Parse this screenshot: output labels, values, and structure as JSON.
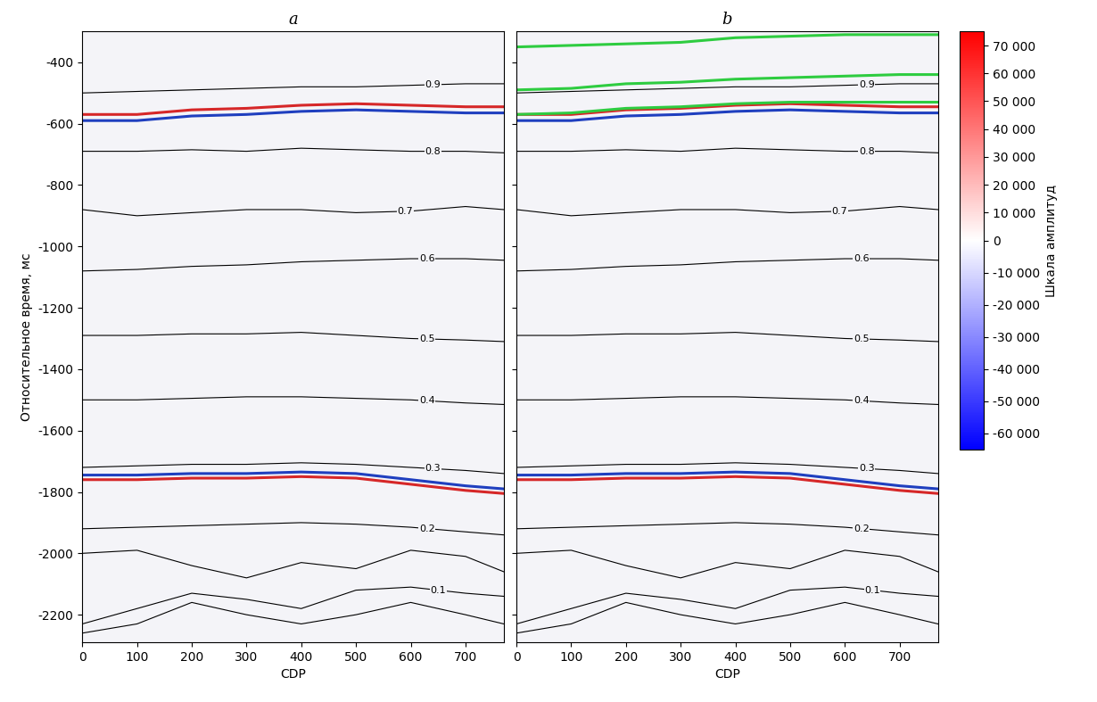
{
  "chart_data": [
    {
      "type": "line",
      "title": "a",
      "xlabel": "CDP",
      "ylabel": "Относительное время, мс",
      "x": [
        0,
        100,
        200,
        300,
        400,
        500,
        600,
        700,
        770
      ],
      "xlim": [
        0,
        770
      ],
      "xticks": [
        0,
        100,
        200,
        300,
        400,
        500,
        600,
        700
      ],
      "ylim": [
        -2290,
        -300
      ],
      "yticks": [
        -2200,
        -2000,
        -1800,
        -1600,
        -1400,
        -1200,
        -1000,
        -800,
        -600,
        -400
      ],
      "tick_labels": true,
      "series": [
        {
          "color": "#d62728",
          "line_style": "solid",
          "values": [
            -570,
            -570,
            -555,
            -550,
            -540,
            -535,
            -540,
            -545,
            -545
          ]
        },
        {
          "color": "#1f3fbf",
          "line_style": "solid",
          "values": [
            -590,
            -590,
            -575,
            -570,
            -560,
            -555,
            -560,
            -565,
            -565
          ]
        },
        {
          "color": "#1f3fbf",
          "line_style": "solid",
          "values": [
            -1745,
            -1745,
            -1740,
            -1740,
            -1735,
            -1740,
            -1760,
            -1780,
            -1790
          ]
        },
        {
          "color": "#d62728",
          "line_style": "solid",
          "values": [
            -1760,
            -1760,
            -1755,
            -1755,
            -1750,
            -1755,
            -1775,
            -1795,
            -1805
          ]
        },
        {
          "name": "0.9",
          "label_at": 640,
          "color": "#000000",
          "line_style": "solid",
          "values": [
            -500,
            -495,
            -490,
            -485,
            -480,
            -480,
            -475,
            -470,
            -470
          ]
        },
        {
          "name": "0.8",
          "label_at": 640,
          "color": "#000000",
          "line_style": "solid",
          "values": [
            -690,
            -690,
            -685,
            -690,
            -680,
            -685,
            -690,
            -690,
            -695
          ]
        },
        {
          "name": "0.7",
          "label_at": 590,
          "color": "#000000",
          "line_style": "solid",
          "values": [
            -880,
            -900,
            -890,
            -880,
            -880,
            -890,
            -885,
            -870,
            -880
          ]
        },
        {
          "name": "0.6",
          "label_at": 630,
          "color": "#000000",
          "line_style": "solid",
          "values": [
            -1080,
            -1075,
            -1065,
            -1060,
            -1050,
            -1045,
            -1040,
            -1040,
            -1045
          ]
        },
        {
          "name": "0.5",
          "label_at": 630,
          "color": "#000000",
          "line_style": "solid",
          "values": [
            -1290,
            -1290,
            -1285,
            -1285,
            -1280,
            -1290,
            -1300,
            -1305,
            -1310
          ]
        },
        {
          "name": "0.4",
          "label_at": 630,
          "color": "#000000",
          "line_style": "solid",
          "values": [
            -1500,
            -1500,
            -1495,
            -1490,
            -1490,
            -1495,
            -1500,
            -1510,
            -1515
          ]
        },
        {
          "name": "0.3",
          "label_at": 640,
          "color": "#000000",
          "line_style": "solid",
          "values": [
            -1720,
            -1715,
            -1710,
            -1710,
            -1705,
            -1710,
            -1720,
            -1730,
            -1740
          ]
        },
        {
          "name": "0.2",
          "label_at": 630,
          "color": "#000000",
          "line_style": "solid",
          "values": [
            -1920,
            -1915,
            -1910,
            -1905,
            -1900,
            -1905,
            -1915,
            -1930,
            -1940
          ]
        },
        {
          "name": "0.1",
          "label_at": 650,
          "color": "#000000",
          "line_style": "solid",
          "values": [
            -2230,
            -2180,
            -2130,
            -2150,
            -2180,
            -2120,
            -2110,
            -2130,
            -2140
          ]
        },
        {
          "color": "#000000",
          "line_style": "solid",
          "values": [
            -2000,
            -1990,
            -2040,
            -2080,
            -2030,
            -2050,
            -1990,
            -2010,
            -2060
          ]
        },
        {
          "color": "#000000",
          "line_style": "solid",
          "values": [
            -2260,
            -2230,
            -2160,
            -2200,
            -2230,
            -2200,
            -2160,
            -2200,
            -2230
          ]
        }
      ]
    },
    {
      "type": "line",
      "title": "b",
      "xlabel": "CDP",
      "x": [
        0,
        100,
        200,
        300,
        400,
        500,
        600,
        700,
        770
      ],
      "xlim": [
        0,
        770
      ],
      "xticks": [
        0,
        100,
        200,
        300,
        400,
        500,
        600,
        700
      ],
      "ylim": [
        -2290,
        -300
      ],
      "yticks": [
        -2200,
        -2000,
        -1800,
        -1600,
        -1400,
        -1200,
        -1000,
        -800,
        -600,
        -400
      ],
      "tick_labels": "x",
      "series": [
        {
          "color": "#d62728",
          "line_style": "solid",
          "values": [
            -570,
            -570,
            -555,
            -550,
            -540,
            -535,
            -540,
            -545,
            -545
          ]
        },
        {
          "color": "#1f3fbf",
          "line_style": "solid",
          "values": [
            -590,
            -590,
            -575,
            -570,
            -560,
            -555,
            -560,
            -565,
            -565
          ]
        },
        {
          "color": "#1f3fbf",
          "line_style": "solid",
          "values": [
            -1745,
            -1745,
            -1740,
            -1740,
            -1735,
            -1740,
            -1760,
            -1780,
            -1790
          ]
        },
        {
          "color": "#d62728",
          "line_style": "solid",
          "values": [
            -1760,
            -1760,
            -1755,
            -1755,
            -1750,
            -1755,
            -1775,
            -1795,
            -1805
          ]
        },
        {
          "color": "#2ecc40",
          "line_style": "solid",
          "values": [
            -350,
            -345,
            -340,
            -335,
            -320,
            -315,
            -310,
            -310,
            -310
          ]
        },
        {
          "color": "#2ecc40",
          "line_style": "solid",
          "values": [
            -490,
            -485,
            -470,
            -465,
            -455,
            -450,
            -445,
            -440,
            -440
          ]
        },
        {
          "color": "#2ecc40",
          "line_style": "solid",
          "values": [
            -570,
            -565,
            -550,
            -545,
            -535,
            -530,
            -530,
            -530,
            -530
          ]
        },
        {
          "name": "0.9",
          "label_at": 640,
          "color": "#000000",
          "line_style": "solid",
          "values": [
            -500,
            -495,
            -490,
            -485,
            -480,
            -480,
            -475,
            -470,
            -470
          ]
        },
        {
          "name": "0.8",
          "label_at": 640,
          "color": "#000000",
          "line_style": "solid",
          "values": [
            -690,
            -690,
            -685,
            -690,
            -680,
            -685,
            -690,
            -690,
            -695
          ]
        },
        {
          "name": "0.7",
          "label_at": 590,
          "color": "#000000",
          "line_style": "solid",
          "values": [
            -880,
            -900,
            -890,
            -880,
            -880,
            -890,
            -885,
            -870,
            -880
          ]
        },
        {
          "name": "0.6",
          "label_at": 630,
          "color": "#000000",
          "line_style": "solid",
          "values": [
            -1080,
            -1075,
            -1065,
            -1060,
            -1050,
            -1045,
            -1040,
            -1040,
            -1045
          ]
        },
        {
          "name": "0.5",
          "label_at": 630,
          "color": "#000000",
          "line_style": "solid",
          "values": [
            -1290,
            -1290,
            -1285,
            -1285,
            -1280,
            -1290,
            -1300,
            -1305,
            -1310
          ]
        },
        {
          "name": "0.4",
          "label_at": 630,
          "color": "#000000",
          "line_style": "solid",
          "values": [
            -1500,
            -1500,
            -1495,
            -1490,
            -1490,
            -1495,
            -1500,
            -1510,
            -1515
          ]
        },
        {
          "name": "0.3",
          "label_at": 640,
          "color": "#000000",
          "line_style": "solid",
          "values": [
            -1720,
            -1715,
            -1710,
            -1710,
            -1705,
            -1710,
            -1720,
            -1730,
            -1740
          ]
        },
        {
          "name": "0.2",
          "label_at": 630,
          "color": "#000000",
          "line_style": "solid",
          "values": [
            -1920,
            -1915,
            -1910,
            -1905,
            -1900,
            -1905,
            -1915,
            -1930,
            -1940
          ]
        },
        {
          "name": "0.1",
          "label_at": 650,
          "color": "#000000",
          "line_style": "solid",
          "values": [
            -2230,
            -2180,
            -2130,
            -2150,
            -2180,
            -2120,
            -2110,
            -2130,
            -2140
          ]
        },
        {
          "color": "#000000",
          "line_style": "solid",
          "values": [
            -2000,
            -1990,
            -2040,
            -2080,
            -2030,
            -2050,
            -1990,
            -2010,
            -2060
          ]
        },
        {
          "color": "#000000",
          "line_style": "solid",
          "values": [
            -2260,
            -2230,
            -2160,
            -2200,
            -2230,
            -2200,
            -2160,
            -2200,
            -2230
          ]
        }
      ],
      "colorbar": {
        "label": "Шкала амплитуд",
        "range": [
          -65000,
          75000
        ],
        "ticks": [
          {
            "value": -60000,
            "label": "-60 000"
          },
          {
            "value": -50000,
            "label": "-50 000"
          },
          {
            "value": -40000,
            "label": "-40 000"
          },
          {
            "value": -30000,
            "label": "-30 000"
          },
          {
            "value": -20000,
            "label": "-20 000"
          },
          {
            "value": -10000,
            "label": "-10 000"
          },
          0,
          {
            "value": 10000,
            "label": "10 000"
          },
          {
            "value": 20000,
            "label": "20 000"
          },
          {
            "value": 30000,
            "label": "30 000"
          },
          {
            "value": 40000,
            "label": "40 000"
          },
          {
            "value": 50000,
            "label": "50 000"
          },
          {
            "value": 60000,
            "label": "60 000"
          },
          {
            "value": 70000,
            "label": "70 000"
          }
        ]
      }
    }
  ]
}
